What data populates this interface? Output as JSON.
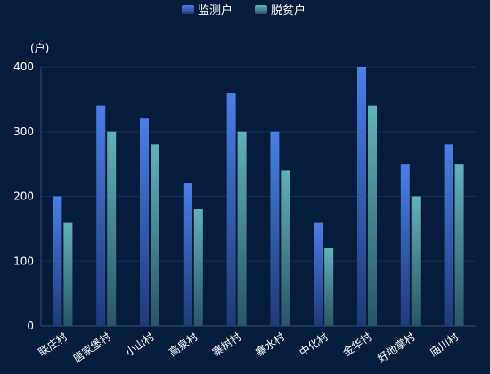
{
  "chart_data": {
    "type": "bar",
    "categories": [
      "联庄村",
      "唐家堡村",
      "小山村",
      "高泉村",
      "寨树村",
      "寨水村",
      "中化村",
      "金华村",
      "好地掌村",
      "庙川村"
    ],
    "series": [
      {
        "name": "监测户",
        "values": [
          200,
          340,
          320,
          220,
          360,
          300,
          160,
          400,
          250,
          280
        ],
        "color": "#3f6fd0"
      },
      {
        "name": "脱贫户",
        "values": [
          160,
          300,
          280,
          180,
          300,
          240,
          120,
          340,
          200,
          250
        ],
        "color": "#4f9aa4"
      }
    ],
    "ylabel": "(户)",
    "ylim": [
      0,
      400
    ],
    "yticks": [
      0,
      100,
      200,
      300,
      400
    ],
    "grid": true,
    "legend": "top-center",
    "colors": {
      "background": "#061c3d",
      "text": "#ffffff",
      "axis": "#3b4f6d",
      "grid": "#14305a"
    }
  }
}
